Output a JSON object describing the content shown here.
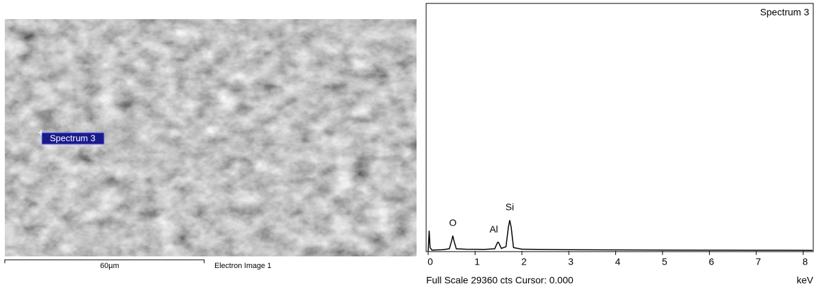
{
  "image_panel": {
    "marker_label": "Spectrum 3",
    "scale_bar_label": "60µm",
    "caption": "Electron Image 1"
  },
  "chart_data": {
    "type": "line",
    "title": "Spectrum 3",
    "x": [
      0,
      0.02,
      0.04,
      0.08,
      0.3,
      0.45,
      0.5,
      0.525,
      0.55,
      0.6,
      0.8,
      1.2,
      1.42,
      1.47,
      1.49,
      1.51,
      1.56,
      1.66,
      1.71,
      1.74,
      1.77,
      1.82,
      2.0,
      3,
      4,
      5,
      6,
      7,
      8,
      8.2
    ],
    "series": [
      {
        "name": "Spectrum 3",
        "color": "#000000",
        "values": [
          0,
          2400,
          400,
          100,
          150,
          250,
          1200,
          1800,
          1200,
          250,
          200,
          180,
          250,
          900,
          1050,
          900,
          300,
          500,
          2800,
          3650,
          2800,
          400,
          200,
          150,
          120,
          100,
          90,
          80,
          70,
          60
        ]
      }
    ],
    "annotations": [
      {
        "text": "O",
        "x": 0.525
      },
      {
        "text": "Al",
        "x": 1.49
      },
      {
        "text": "Si",
        "x": 1.74
      }
    ],
    "xlim": [
      0,
      8.22
    ],
    "xticks": [
      0,
      1,
      2,
      3,
      4,
      5,
      6,
      7,
      8
    ],
    "ylim": [
      0,
      29360
    ],
    "x_label": "keV",
    "footer": "Full Scale 29360 cts Cursor: 0.000"
  }
}
